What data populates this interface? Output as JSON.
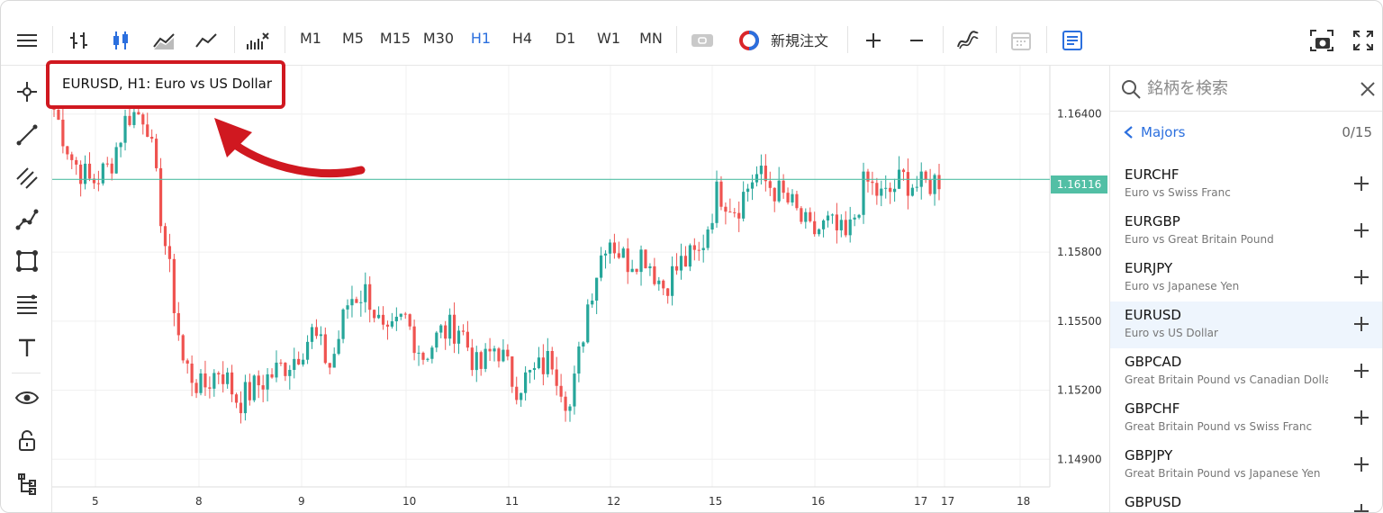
{
  "toolbar": {
    "icons": [
      "menu-icon",
      "bar-chart-icon",
      "candlestick-icon",
      "area-chart-icon",
      "line-chart-icon",
      "indicators-icon"
    ],
    "timeframes": [
      "M1",
      "M5",
      "M15",
      "M30",
      "H1",
      "H4",
      "D1",
      "W1",
      "MN"
    ],
    "active_timeframe": "H1",
    "new_order_label": "新規注文",
    "right_icons": [
      "zoom-in-icon",
      "zoom-out-icon",
      "objects-icon",
      "calendar-icon",
      "notes-icon",
      "screenshot-icon",
      "fullscreen-icon"
    ]
  },
  "left_tools": [
    "crosshair-icon",
    "trendline-icon",
    "channel-icon",
    "polyline-icon",
    "shapes-icon",
    "fibonacci-icon",
    "text-icon",
    "eye-icon",
    "lock-icon",
    "tree-icon"
  ],
  "chart": {
    "title": "EURUSD, H1: Euro vs US Dollar",
    "current_price": "1.16116",
    "colors": {
      "bull": "#26a69a",
      "bear": "#ef5350",
      "price_line": "#52bfa5",
      "highlight": "#d01820"
    }
  },
  "chart_data": {
    "type": "candlestick",
    "y_ticks": [
      "1.16400",
      "1.15800",
      "1.15500",
      "1.15200",
      "1.14900"
    ],
    "x_ticks": [
      "5",
      "8",
      "9",
      "10",
      "11",
      "12",
      "15",
      "16",
      "17",
      "17",
      "18"
    ],
    "current_price": 1.16116,
    "ylim": [
      1.1478,
      1.1661
    ],
    "close_path": [
      1.1642,
      1.162,
      1.161,
      1.1617,
      1.164,
      1.164,
      1.1585,
      1.1532,
      1.152,
      1.153,
      1.1515,
      1.1522,
      1.1528,
      1.1534,
      1.1545,
      1.153,
      1.156,
      1.1563,
      1.154,
      1.1552,
      1.1535,
      1.1545,
      1.1548,
      1.1528,
      1.154,
      1.1522,
      1.1527,
      1.1534,
      1.1512,
      1.156,
      1.1588,
      1.1576,
      1.158,
      1.1565,
      1.1575,
      1.1579,
      1.1607,
      1.1599,
      1.1614,
      1.1608,
      1.16,
      1.1588,
      1.1592,
      1.1585,
      1.1611,
      1.1603,
      1.1612,
      1.1608,
      1.1612
    ]
  },
  "panel": {
    "search_placeholder": "銘柄を検索",
    "group_name": "Majors",
    "group_count": "0/15",
    "symbols": [
      {
        "name": "EURCHF",
        "desc": "Euro vs Swiss Franc"
      },
      {
        "name": "EURGBP",
        "desc": "Euro vs Great Britain Pound"
      },
      {
        "name": "EURJPY",
        "desc": "Euro vs Japanese Yen"
      },
      {
        "name": "EURUSD",
        "desc": "Euro vs US Dollar"
      },
      {
        "name": "GBPCAD",
        "desc": "Great Britain Pound vs Canadian Dollar"
      },
      {
        "name": "GBPCHF",
        "desc": "Great Britain Pound vs Swiss Franc"
      },
      {
        "name": "GBPJPY",
        "desc": "Great Britain Pound vs Japanese Yen"
      },
      {
        "name": "GBPUSD",
        "desc": ""
      }
    ],
    "selected_symbol": "EURUSD"
  }
}
